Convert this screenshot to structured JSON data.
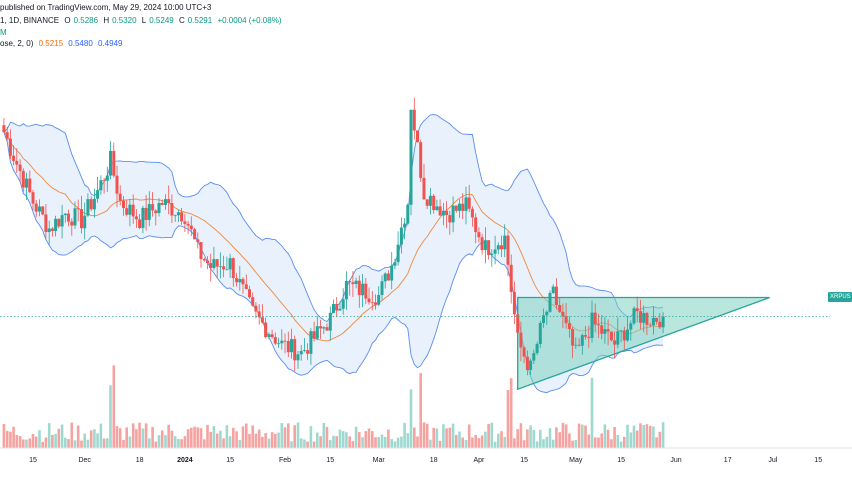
{
  "header": {
    "line1_prefix": "published on TradingView.com, May 29, 2024 10:00 UTC+3",
    "line2_prefix": "1, 1D, BINANCE",
    "open_label": "O",
    "open": "0.5286",
    "high_label": "H",
    "high": "0.5320",
    "low_label": "L",
    "low": "0.5249",
    "close_label": "C",
    "close": "0.5291",
    "change": "+0.0004 (+0.08%)",
    "line3_prefix": "M",
    "line4_prefix": "ose, 2, 0)",
    "bb_basis": "0.5215",
    "bb_upper": "0.5480",
    "bb_lower": "0.4949"
  },
  "price_tag": "XRPUS",
  "colors": {
    "up": "#26a69a",
    "down": "#ef5350",
    "vol_up": "#9fd8cf",
    "vol_down": "#f5a3a0",
    "band": "#5b8def",
    "band_fill": "#e8f1fc",
    "basis": "#f0883e",
    "triangle": "#26a69a",
    "triangle_fill": "#7fd1c1",
    "price_line": "#26a69a"
  },
  "chart_data": {
    "type": "candlestick",
    "symbol": "XRPUSDT",
    "exchange": "BINANCE",
    "interval": "1D",
    "x_tick_labels": [
      "15",
      "Dec",
      "18",
      "2024",
      "15",
      "Feb",
      "15",
      "Mar",
      "18",
      "Apr",
      "15",
      "May",
      "15",
      "Jun",
      "17",
      "Jul",
      "15"
    ],
    "x_tick_dates": [
      "2023-11-15",
      "2023-12-01",
      "2023-12-18",
      "2024-01-01",
      "2024-01-15",
      "2024-02-01",
      "2024-02-15",
      "2024-03-01",
      "2024-03-18",
      "2024-04-01",
      "2024-04-15",
      "2024-05-01",
      "2024-05-15",
      "2024-06-01",
      "2024-06-17",
      "2024-07-01",
      "2024-07-15"
    ],
    "ylim": [
      0.46,
      0.75
    ],
    "last_close": 0.5291,
    "close_series": [
      {
        "date": "2023-11-06",
        "close": 0.688
      },
      {
        "date": "2023-11-10",
        "close": 0.661
      },
      {
        "date": "2023-11-15",
        "close": 0.628
      },
      {
        "date": "2023-11-20",
        "close": 0.605
      },
      {
        "date": "2023-11-25",
        "close": 0.618
      },
      {
        "date": "2023-11-30",
        "close": 0.612
      },
      {
        "date": "2023-12-05",
        "close": 0.637
      },
      {
        "date": "2023-12-09",
        "close": 0.663
      },
      {
        "date": "2023-12-12",
        "close": 0.628
      },
      {
        "date": "2023-12-18",
        "close": 0.613
      },
      {
        "date": "2023-12-25",
        "close": 0.627
      },
      {
        "date": "2024-01-01",
        "close": 0.617
      },
      {
        "date": "2024-01-05",
        "close": 0.585
      },
      {
        "date": "2024-01-09",
        "close": 0.572
      },
      {
        "date": "2024-01-15",
        "close": 0.575
      },
      {
        "date": "2024-01-22",
        "close": 0.532
      },
      {
        "date": "2024-01-31",
        "close": 0.505
      },
      {
        "date": "2024-02-06",
        "close": 0.498
      },
      {
        "date": "2024-02-15",
        "close": 0.527
      },
      {
        "date": "2024-02-20",
        "close": 0.556
      },
      {
        "date": "2024-03-01",
        "close": 0.547
      },
      {
        "date": "2024-03-05",
        "close": 0.573
      },
      {
        "date": "2024-03-10",
        "close": 0.628
      },
      {
        "date": "2024-03-11",
        "close": 0.712
      },
      {
        "date": "2024-03-15",
        "close": 0.636
      },
      {
        "date": "2024-03-22",
        "close": 0.618
      },
      {
        "date": "2024-03-28",
        "close": 0.624
      },
      {
        "date": "2024-04-03",
        "close": 0.588
      },
      {
        "date": "2024-04-09",
        "close": 0.597
      },
      {
        "date": "2024-04-13",
        "close": 0.508
      },
      {
        "date": "2024-04-17",
        "close": 0.484
      },
      {
        "date": "2024-04-21",
        "close": 0.527
      },
      {
        "date": "2024-04-24",
        "close": 0.548
      },
      {
        "date": "2024-05-01",
        "close": 0.496
      },
      {
        "date": "2024-05-06",
        "close": 0.524
      },
      {
        "date": "2024-05-13",
        "close": 0.506
      },
      {
        "date": "2024-05-20",
        "close": 0.531
      },
      {
        "date": "2024-05-24",
        "close": 0.527
      },
      {
        "date": "2024-05-28",
        "close": 0.529
      }
    ],
    "bollinger_bands": {
      "basis_last": 0.5215,
      "upper_last": 0.548,
      "lower_last": 0.4949
    },
    "ascending_triangle": {
      "resistance": 0.5455,
      "start_date": "2024-04-13",
      "start_low": 0.4666,
      "apex_date": "2024-06-30",
      "apex_value": 0.5455
    }
  }
}
